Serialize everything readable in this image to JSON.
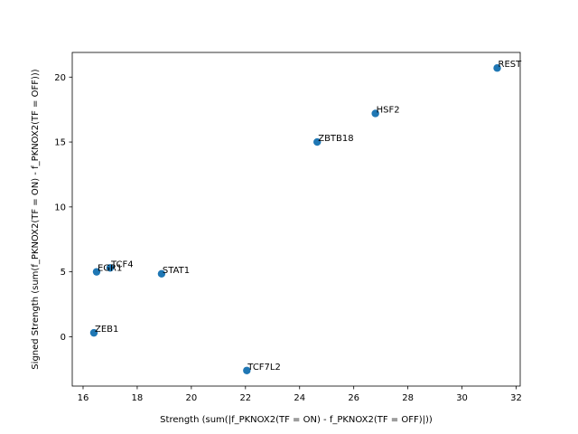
{
  "chart_data": {
    "type": "scatter",
    "xlabel": "Strength (sum(|f_PKNOX2(TF = ON) - f_PKNOX2(TF = OFF)|))",
    "ylabel": "Signed Strength (sum(f_PKNOX2(TF = ON) - f_PKNOX2(TF = OFF)))",
    "xlim": [
      15.6,
      32.15
    ],
    "ylim": [
      -3.8,
      21.9
    ],
    "xticks": [
      16,
      18,
      20,
      22,
      24,
      26,
      28,
      30,
      32
    ],
    "yticks": [
      0,
      5,
      10,
      15,
      20
    ],
    "grid": false,
    "point_color": "#1f77b4",
    "points": [
      {
        "label": "REST",
        "x": 31.3,
        "y": 20.7
      },
      {
        "label": "HSF2",
        "x": 26.8,
        "y": 17.2
      },
      {
        "label": "ZBTB18",
        "x": 24.65,
        "y": 15.0
      },
      {
        "label": "TCF4",
        "x": 17.0,
        "y": 5.3
      },
      {
        "label": "EGR1",
        "x": 16.5,
        "y": 5.0
      },
      {
        "label": "STAT1",
        "x": 18.9,
        "y": 4.85
      },
      {
        "label": "ZEB1",
        "x": 16.4,
        "y": 0.3
      },
      {
        "label": "TCF7L2",
        "x": 22.05,
        "y": -2.6
      }
    ]
  }
}
